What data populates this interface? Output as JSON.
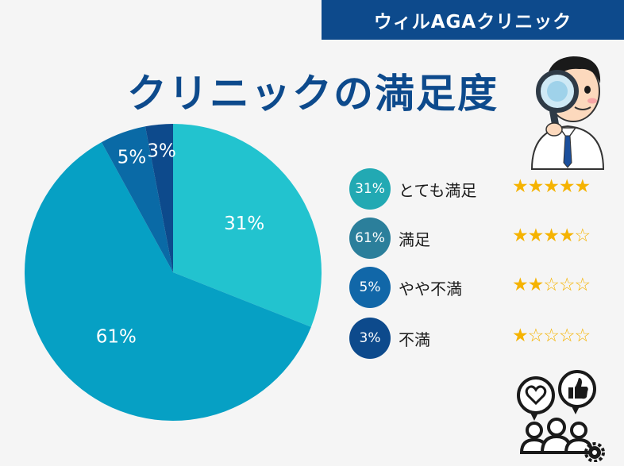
{
  "brand": "ウィルAGAクリニック",
  "title": "クリニックの満足度",
  "chart_data": {
    "type": "pie",
    "start_angle_deg": 0,
    "direction": "clockwise",
    "slices": [
      {
        "label": "とても満足",
        "value": 31,
        "display": "31%",
        "color": "#22c3cf",
        "stars": 5
      },
      {
        "label": "満足",
        "value": 61,
        "display": "61%",
        "color": "#06a0c4",
        "stars": 4
      },
      {
        "label": "やや不満",
        "value": 5,
        "display": "5%",
        "color": "#0a6aa6",
        "stars": 2
      },
      {
        "label": "不満",
        "value": 3,
        "display": "3%",
        "color": "#0d4a8c",
        "stars": 1
      }
    ]
  },
  "legend_colors": [
    "#22a9b3",
    "#2b7f9b",
    "#1167a8",
    "#0d4a8c"
  ],
  "icons": {
    "doctor": "doctor-magnifier-icon",
    "people": "people-feedback-icon"
  }
}
